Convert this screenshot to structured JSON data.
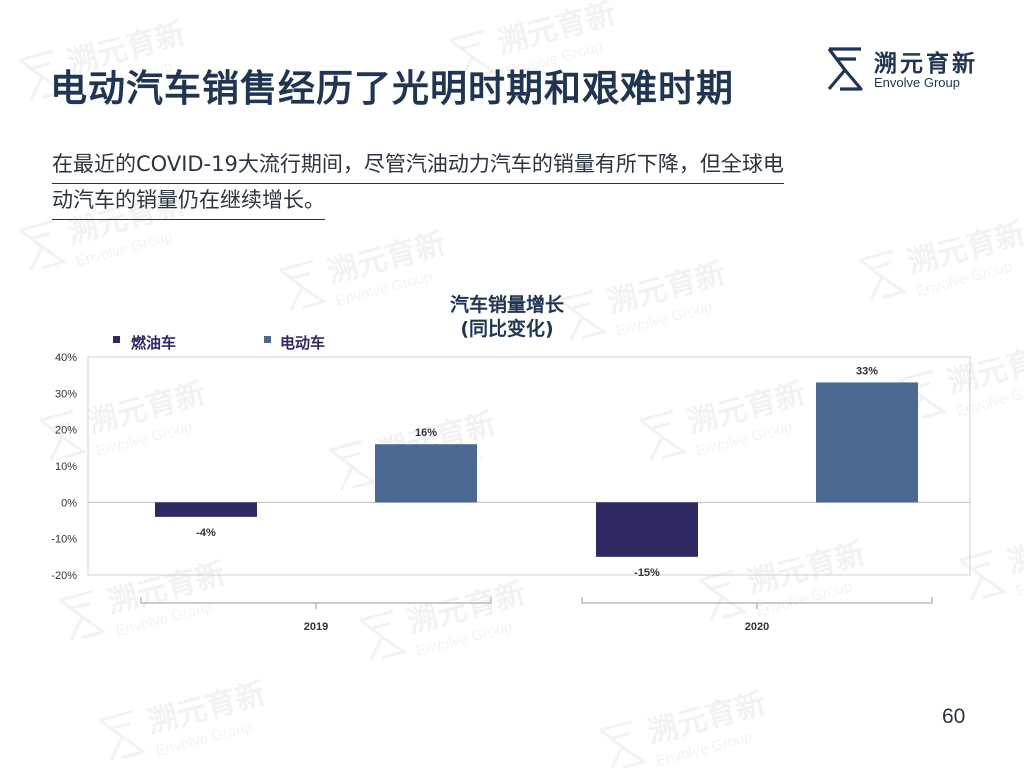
{
  "page": {
    "title": "电动汽车销售经历了光明时期和艰难时期",
    "subtitle_lines": [
      "在最近的COVID-19大流行期间，尽管汽油动力汽车的销量有所下降，但全球电",
      "动汽车的销量仍在继续增长。"
    ],
    "page_number": "60"
  },
  "logo": {
    "name_cn": "溯元育新",
    "name_en": "Envolve Group",
    "icon": "envolve-logo-icon"
  },
  "watermark": {
    "text_cn": "溯元育新",
    "text_en": "Envolve Group"
  },
  "colors": {
    "title": "#1f3551",
    "ice_bar": "#2e2a61",
    "ev_bar": "#4b6a92",
    "axis_text": "#333333",
    "grid": "#bfbfbf"
  },
  "chart_data": {
    "type": "bar",
    "title": "汽车销量增长\n(同比变化)",
    "title_lines": [
      "汽车销量增长",
      "(同比变化)"
    ],
    "categories": [
      "2019",
      "2020"
    ],
    "series": [
      {
        "name": "燃油车",
        "values": [
          -4,
          -15
        ],
        "labels": [
          "-4%",
          "-15%"
        ],
        "color": "#2e2a61"
      },
      {
        "name": "电动车",
        "values": [
          16,
          33
        ],
        "labels": [
          "16%",
          "33%"
        ],
        "color": "#4b6a92"
      }
    ],
    "y_ticks": [
      40,
      30,
      20,
      10,
      0,
      -10,
      -20
    ],
    "y_tick_labels": [
      "40%",
      "30%",
      "20%",
      "10%",
      "0%",
      "-10%",
      "-20%"
    ],
    "ylim": [
      -20,
      40
    ],
    "legend_position": "top-left",
    "grid": false
  }
}
